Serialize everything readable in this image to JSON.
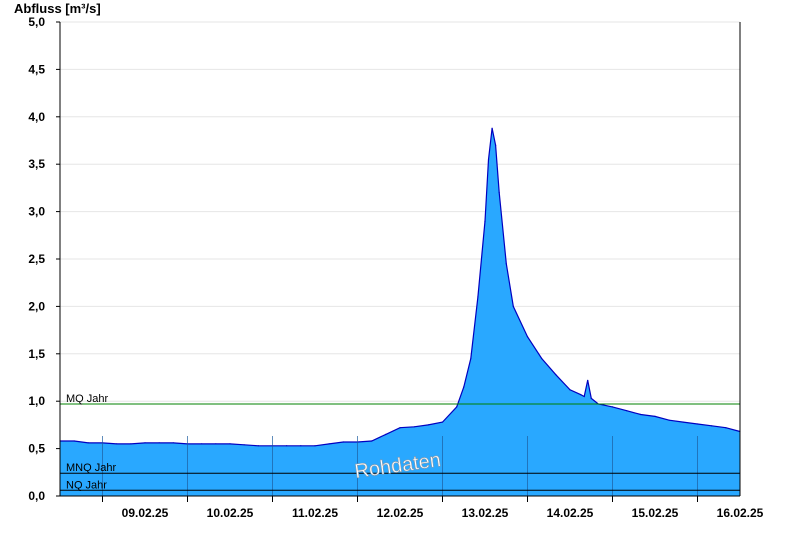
{
  "chart_data": {
    "type": "area",
    "ylabel": "Abfluss [m³/s]",
    "ylim": [
      0,
      5.0
    ],
    "yticks": [
      "0,0",
      "0,5",
      "1,0",
      "1,5",
      "2,0",
      "2,5",
      "3,0",
      "3,5",
      "4,0",
      "4,5",
      "5,0"
    ],
    "xlim": [
      "2025-02-08T12:00",
      "2025-02-16T12:00"
    ],
    "xticks": [
      {
        "date": "2025-02-09T12:00",
        "label": "09.02.25"
      },
      {
        "date": "2025-02-10T12:00",
        "label": "10.02.25"
      },
      {
        "date": "2025-02-11T12:00",
        "label": "11.02.25"
      },
      {
        "date": "2025-02-12T12:00",
        "label": "12.02.25"
      },
      {
        "date": "2025-02-13T12:00",
        "label": "13.02.25"
      },
      {
        "date": "2025-02-14T12:00",
        "label": "14.02.25"
      },
      {
        "date": "2025-02-15T12:00",
        "label": "15.02.25"
      },
      {
        "date": "2025-02-16T12:00",
        "label": "16.02.25"
      }
    ],
    "grid": true,
    "reference_lines": [
      {
        "name": "MQ Jahr",
        "value": 0.97,
        "color": "#008000"
      },
      {
        "name": "MNQ Jahr",
        "value": 0.24,
        "color": "#000000"
      },
      {
        "name": "NQ Jahr",
        "value": 0.06,
        "color": "#000000"
      }
    ],
    "watermark": "Rohdaten",
    "fill_color": "#29a8ff",
    "line_color": "#0000c0",
    "series": [
      {
        "x": [
          "2025-02-08T12:00",
          "2025-02-08T16:00",
          "2025-02-08T20:00",
          "2025-02-09T00:00",
          "2025-02-09T04:00",
          "2025-02-09T08:00",
          "2025-02-09T12:00",
          "2025-02-09T16:00",
          "2025-02-09T20:00",
          "2025-02-10T00:00",
          "2025-02-10T04:00",
          "2025-02-10T08:00",
          "2025-02-10T12:00",
          "2025-02-10T16:00",
          "2025-02-10T20:00",
          "2025-02-11T00:00",
          "2025-02-11T04:00",
          "2025-02-11T08:00",
          "2025-02-11T12:00",
          "2025-02-11T16:00",
          "2025-02-11T20:00",
          "2025-02-12T00:00",
          "2025-02-12T04:00",
          "2025-02-12T08:00",
          "2025-02-12T12:00",
          "2025-02-12T16:00",
          "2025-02-12T20:00",
          "2025-02-13T00:00",
          "2025-02-13T04:00",
          "2025-02-13T06:00",
          "2025-02-13T08:00",
          "2025-02-13T10:00",
          "2025-02-13T12:00",
          "2025-02-13T13:00",
          "2025-02-13T14:00",
          "2025-02-13T15:00",
          "2025-02-13T16:00",
          "2025-02-13T18:00",
          "2025-02-13T20:00",
          "2025-02-14T00:00",
          "2025-02-14T04:00",
          "2025-02-14T08:00",
          "2025-02-14T12:00",
          "2025-02-14T15:00",
          "2025-02-14T16:00",
          "2025-02-14T17:00",
          "2025-02-14T18:00",
          "2025-02-14T20:00",
          "2025-02-15T00:00",
          "2025-02-15T04:00",
          "2025-02-15T08:00",
          "2025-02-15T12:00",
          "2025-02-15T16:00",
          "2025-02-15T20:00",
          "2025-02-16T00:00",
          "2025-02-16T04:00",
          "2025-02-16T08:00",
          "2025-02-16T12:00"
        ],
        "values": [
          0.58,
          0.58,
          0.56,
          0.56,
          0.55,
          0.55,
          0.56,
          0.56,
          0.56,
          0.55,
          0.55,
          0.55,
          0.55,
          0.54,
          0.53,
          0.53,
          0.53,
          0.53,
          0.53,
          0.55,
          0.57,
          0.57,
          0.58,
          0.65,
          0.72,
          0.73,
          0.75,
          0.78,
          0.94,
          1.15,
          1.45,
          2.1,
          2.9,
          3.55,
          3.88,
          3.7,
          3.2,
          2.45,
          2.0,
          1.68,
          1.45,
          1.28,
          1.12,
          1.07,
          1.05,
          1.22,
          1.03,
          0.97,
          0.94,
          0.9,
          0.86,
          0.84,
          0.8,
          0.78,
          0.76,
          0.74,
          0.72,
          0.68
        ]
      }
    ]
  }
}
